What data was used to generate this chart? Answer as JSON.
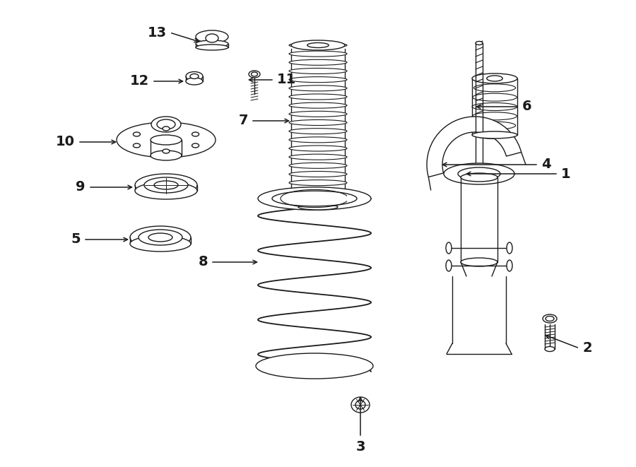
{
  "bg_color": "#ffffff",
  "line_color": "#1a1a1a",
  "fig_width": 9.0,
  "fig_height": 6.61,
  "dpi": 100,
  "lw": 1.0
}
